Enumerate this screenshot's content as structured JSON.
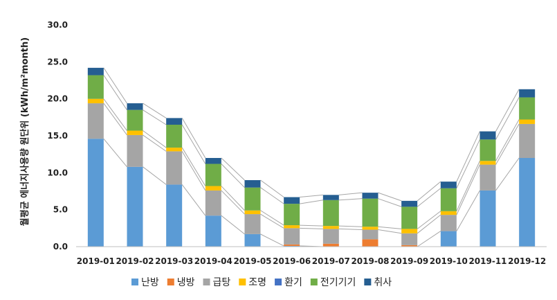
{
  "chart_data": {
    "type": "bar",
    "stacked": true,
    "title": "",
    "xlabel": "",
    "ylabel": "월평균 에너지사용량 원단위 (kWh/m²month)",
    "ylim": [
      0,
      30
    ],
    "yticks": [
      "0.0",
      "5.0",
      "10.0",
      "15.0",
      "20.0",
      "25.0",
      "30.0"
    ],
    "grid": false,
    "legend_position": "bottom",
    "categories": [
      "2019-01",
      "2019-02",
      "2019-03",
      "2019-04",
      "2019-05",
      "2019-06",
      "2019-07",
      "2019-08",
      "2019-09",
      "2019-10",
      "2019-11",
      "2019-12"
    ],
    "series": [
      {
        "name": "난방",
        "color": "#5b9bd5",
        "values": [
          14.6,
          10.8,
          8.4,
          4.2,
          1.7,
          0.1,
          0.0,
          0.0,
          0.0,
          2.1,
          7.6,
          12.0
        ]
      },
      {
        "name": "냉방",
        "color": "#ed7d31",
        "values": [
          0.0,
          0.0,
          0.0,
          0.0,
          0.0,
          0.2,
          0.4,
          1.0,
          0.2,
          0.0,
          0.0,
          0.0
        ]
      },
      {
        "name": "급탕",
        "color": "#a5a5a5",
        "values": [
          4.8,
          4.3,
          4.5,
          3.4,
          2.7,
          2.2,
          2.0,
          1.3,
          1.6,
          2.2,
          3.5,
          4.6
        ]
      },
      {
        "name": "조명",
        "color": "#ffc000",
        "values": [
          0.6,
          0.6,
          0.5,
          0.6,
          0.5,
          0.4,
          0.4,
          0.4,
          0.6,
          0.5,
          0.5,
          0.6
        ]
      },
      {
        "name": "환기",
        "color": "#4472c4",
        "values": [
          0.0,
          0.0,
          0.0,
          0.0,
          0.0,
          0.0,
          0.0,
          0.0,
          0.0,
          0.0,
          0.0,
          0.0
        ]
      },
      {
        "name": "전기기기",
        "color": "#70ad47",
        "values": [
          3.2,
          2.8,
          3.1,
          3.0,
          3.1,
          2.9,
          3.5,
          3.8,
          3.0,
          3.1,
          2.9,
          3.0
        ]
      },
      {
        "name": "취사",
        "color": "#255e91",
        "values": [
          1.0,
          0.9,
          0.9,
          0.8,
          1.0,
          0.9,
          0.7,
          0.8,
          0.8,
          0.9,
          1.1,
          1.1
        ]
      }
    ],
    "series_lines": "thin gray lines connecting stacked segment tops of adjacent bars"
  }
}
